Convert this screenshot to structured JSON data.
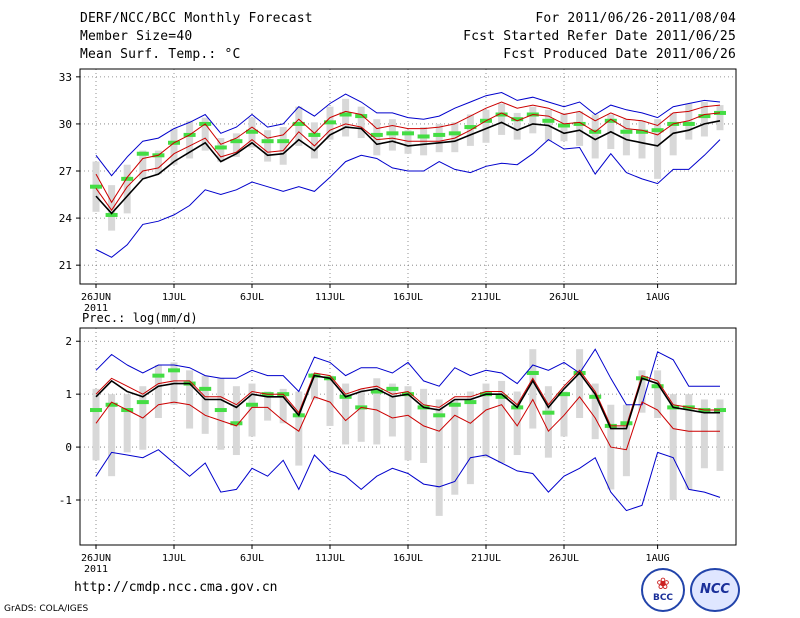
{
  "header": {
    "title": "DERF/NCC/BCC Monthly Forecast",
    "member_size": "Member Size=40",
    "variable": "Mean Surf. Temp.: °C",
    "period": "For 2011/06/26-2011/08/04",
    "refer_date": "Fcst Started Refer Date 2011/06/25",
    "produced_date": "Fcst Produced Date 2011/06/26"
  },
  "footer": {
    "url": "http://cmdp.ncc.cma.gov.cn",
    "credit": "GrADS: COLA/IGES",
    "logo_left_text": "BCC",
    "logo_right_text": "NCC"
  },
  "colors": {
    "envelope": "#0000cc",
    "mean": "#000000",
    "spread": "#cc0000",
    "median": "#44dd44",
    "box": "#d8d8d8",
    "grid": "#777777"
  },
  "chart_data": [
    {
      "type": "line",
      "title": "Mean Surf. Temp.: °C",
      "x_tick_labels": [
        "26JUN",
        "1JUL",
        "6JUL",
        "11JUL",
        "16JUL",
        "21JUL",
        "26JUL",
        "1AUG"
      ],
      "x_tick_days": [
        1,
        6,
        11,
        16,
        21,
        26,
        31,
        37
      ],
      "year_label": "2011",
      "y_ticks": [
        21,
        24,
        27,
        30,
        33
      ],
      "y_tick_labels": [
        "21",
        "24",
        "27",
        "30",
        "33"
      ],
      "ylim": [
        19.8,
        33.5
      ],
      "days": 40,
      "series": [
        {
          "name": "max",
          "values": [
            22.0,
            21.5,
            22.3,
            23.6,
            23.8,
            24.2,
            24.8,
            25.8,
            25.5,
            25.8,
            26.3,
            26.0,
            25.7,
            26.0,
            25.7,
            26.6,
            27.6,
            28.0,
            27.8,
            27.2,
            27.0,
            27.0,
            27.6,
            27.1,
            26.9,
            27.3,
            27.5,
            27.4,
            28.1,
            29.0,
            28.4,
            28.5,
            26.8,
            28.1,
            26.9,
            26.5,
            26.2,
            27.1,
            27.1,
            28.0,
            29.0
          ]
        },
        {
          "name": "min_envelope",
          "values": [
            25.9,
            24.5,
            26.0,
            27.0,
            27.2,
            28.1,
            28.6,
            29.1,
            27.9,
            28.2,
            29.0,
            28.2,
            28.3,
            29.5,
            28.6,
            29.6,
            30.0,
            29.8,
            29.0,
            29.1,
            28.9,
            28.9,
            28.9,
            29.1,
            29.6,
            30.2,
            30.7,
            30.2,
            30.6,
            30.5,
            30.0,
            30.1,
            29.5,
            30.3,
            29.7,
            29.6,
            29.3,
            30.0,
            30.2,
            30.6,
            30.7
          ]
        }
      ],
      "upper": [
        26.8,
        25.0,
        26.6,
        27.8,
        28.0,
        28.8,
        29.3,
        30.0,
        28.7,
        29.1,
        29.8,
        29.1,
        29.3,
        30.3,
        29.4,
        30.4,
        30.8,
        30.6,
        29.7,
        29.9,
        29.7,
        29.7,
        29.8,
        30.0,
        30.5,
        31.0,
        31.4,
        31.0,
        31.2,
        31.0,
        30.6,
        30.8,
        30.2,
        30.7,
        30.3,
        30.2,
        29.9,
        30.7,
        30.8,
        31.1,
        31.2
      ],
      "envelope_top": [
        28.0,
        26.7,
        27.9,
        28.9,
        29.1,
        29.7,
        30.1,
        30.6,
        29.4,
        29.8,
        30.6,
        29.8,
        30.0,
        31.1,
        30.5,
        31.3,
        31.9,
        31.4,
        30.7,
        30.7,
        30.4,
        30.3,
        30.5,
        31.0,
        31.4,
        31.8,
        32.0,
        31.5,
        31.7,
        31.4,
        31.1,
        31.4,
        30.6,
        31.2,
        30.9,
        30.7,
        30.4,
        31.1,
        31.3,
        31.5,
        31.4
      ],
      "mean": [
        25.4,
        24.3,
        25.4,
        26.5,
        26.8,
        27.6,
        28.2,
        28.8,
        27.6,
        28.1,
        28.8,
        28.0,
        28.1,
        29.0,
        28.3,
        29.3,
        29.8,
        29.7,
        28.7,
        28.9,
        28.6,
        28.7,
        28.8,
        28.9,
        29.3,
        29.7,
        30.1,
        29.6,
        30.0,
        29.9,
        29.4,
        29.6,
        29.0,
        29.5,
        29.0,
        28.8,
        28.6,
        29.4,
        29.6,
        30.0,
        30.2
      ],
      "median": [
        26.0,
        24.2,
        26.5,
        28.1,
        28.0,
        28.8,
        29.3,
        30.0,
        28.5,
        28.9,
        29.5,
        28.9,
        28.9,
        30.0,
        29.3,
        30.1,
        30.6,
        30.5,
        29.3,
        29.4,
        29.4,
        29.2,
        29.3,
        29.4,
        29.8,
        30.2,
        30.6,
        30.3,
        30.6,
        30.2,
        29.9,
        30.0,
        29.5,
        30.2,
        29.5,
        29.5,
        29.6,
        30.0,
        30.0,
        30.5,
        30.7
      ],
      "box_low": [
        24.4,
        23.2,
        24.3,
        26.5,
        26.8,
        27.4,
        27.8,
        28.3,
        27.6,
        27.9,
        28.5,
        27.6,
        27.4,
        28.6,
        27.8,
        29.0,
        29.2,
        29.1,
        28.0,
        28.3,
        28.1,
        28.0,
        28.2,
        28.2,
        28.6,
        28.8,
        29.3,
        29.0,
        29.4,
        28.9,
        28.9,
        28.6,
        27.8,
        28.4,
        28.0,
        27.8,
        26.5,
        28.0,
        29.0,
        29.2,
        29.6
      ],
      "box_high": [
        27.6,
        26.1,
        27.4,
        28.3,
        28.3,
        29.7,
        30.2,
        30.4,
        29.1,
        29.4,
        30.4,
        29.6,
        29.8,
        31.1,
        30.1,
        31.1,
        31.6,
        31.1,
        30.3,
        30.3,
        29.6,
        29.8,
        30.0,
        30.1,
        30.6,
        30.9,
        31.3,
        30.7,
        31.1,
        30.9,
        30.7,
        30.8,
        30.6,
        30.6,
        30.3,
        30.2,
        30.3,
        30.7,
        31.3,
        31.4,
        31.2
      ]
    },
    {
      "type": "line",
      "title": "Prec.: log(mm/d)",
      "x_tick_labels": [
        "26JUN",
        "1JUL",
        "6JUL",
        "11JUL",
        "16JUL",
        "21JUL",
        "26JUL",
        "1AUG"
      ],
      "x_tick_days": [
        1,
        6,
        11,
        16,
        21,
        26,
        31,
        37
      ],
      "year_label": "2011",
      "y_ticks": [
        -1,
        0,
        1,
        2
      ],
      "y_tick_labels": [
        "-1",
        "0",
        "1",
        "2"
      ],
      "ylim": [
        -1.85,
        2.25
      ],
      "days": 40,
      "envelope_top": [
        1.45,
        1.75,
        1.55,
        1.4,
        1.55,
        1.55,
        1.5,
        1.35,
        1.3,
        1.3,
        1.45,
        1.35,
        1.35,
        1.05,
        1.7,
        1.6,
        1.35,
        1.5,
        1.5,
        1.4,
        1.6,
        1.25,
        1.15,
        1.5,
        1.35,
        1.45,
        1.4,
        1.2,
        1.55,
        1.45,
        1.6,
        1.4,
        1.85,
        1.3,
        0.8,
        0.8,
        1.8,
        1.65,
        1.15,
        1.15,
        1.15
      ],
      "envelope_bottom": [
        -0.55,
        -0.1,
        -0.15,
        -0.2,
        -0.05,
        -0.3,
        -0.55,
        -0.3,
        -0.85,
        -0.8,
        -0.4,
        -0.55,
        -0.25,
        -0.8,
        -0.15,
        -0.45,
        -0.55,
        -0.8,
        -0.55,
        -0.4,
        -0.5,
        -0.7,
        -0.75,
        -0.65,
        -0.2,
        -0.15,
        -0.3,
        -0.45,
        -0.5,
        -0.85,
        -0.55,
        -0.4,
        -0.2,
        -0.85,
        -1.2,
        -1.1,
        -0.1,
        -0.2,
        -0.8,
        -0.85,
        -0.95
      ],
      "upper": [
        1.0,
        1.3,
        1.15,
        1.0,
        1.2,
        1.25,
        1.25,
        0.95,
        0.95,
        0.8,
        1.05,
        1.0,
        1.0,
        0.65,
        1.4,
        1.35,
        1.0,
        1.1,
        1.15,
        1.0,
        1.05,
        0.8,
        0.75,
        0.95,
        0.95,
        1.05,
        1.05,
        0.8,
        1.3,
        0.8,
        1.15,
        1.45,
        1.05,
        0.4,
        0.4,
        1.35,
        1.25,
        0.8,
        0.75,
        0.7,
        0.7
      ],
      "mean": [
        0.95,
        1.25,
        1.05,
        0.95,
        1.15,
        1.2,
        1.2,
        0.9,
        0.9,
        0.75,
        1.0,
        0.95,
        0.95,
        0.6,
        1.35,
        1.3,
        0.95,
        1.05,
        1.1,
        0.95,
        1.0,
        0.75,
        0.7,
        0.9,
        0.9,
        1.0,
        1.0,
        0.75,
        1.25,
        0.75,
        1.1,
        1.4,
        1.0,
        0.35,
        0.35,
        1.3,
        1.2,
        0.75,
        0.7,
        0.65,
        0.65
      ],
      "lower": [
        0.45,
        0.85,
        0.7,
        0.55,
        0.8,
        0.85,
        0.8,
        0.6,
        0.5,
        0.4,
        0.75,
        0.75,
        0.5,
        0.3,
        0.95,
        0.85,
        0.5,
        0.75,
        0.7,
        0.55,
        0.6,
        0.4,
        0.3,
        0.6,
        0.45,
        0.7,
        0.8,
        0.4,
        0.9,
        0.3,
        0.6,
        0.95,
        0.55,
        0.0,
        -0.05,
        0.85,
        0.7,
        0.35,
        0.3,
        0.3,
        0.3
      ],
      "median": [
        0.7,
        0.8,
        0.7,
        0.85,
        1.35,
        1.45,
        1.2,
        1.1,
        0.7,
        0.45,
        0.8,
        1.0,
        1.0,
        0.6,
        1.35,
        1.3,
        0.95,
        0.75,
        1.05,
        1.1,
        1.0,
        0.75,
        0.6,
        0.8,
        0.85,
        1.0,
        0.95,
        0.75,
        1.4,
        0.65,
        1.0,
        1.4,
        0.95,
        0.4,
        0.45,
        1.3,
        1.15,
        0.75,
        0.75,
        0.7,
        0.7
      ],
      "box_low": [
        -0.25,
        -0.55,
        -0.1,
        -0.05,
        0.55,
        0.8,
        0.35,
        0.25,
        -0.05,
        -0.15,
        0.2,
        0.5,
        0.45,
        -0.35,
        0.9,
        0.4,
        0.05,
        0.1,
        0.05,
        0.2,
        -0.25,
        -0.3,
        -1.3,
        -0.9,
        -0.7,
        -0.2,
        -0.3,
        -0.15,
        0.35,
        -0.2,
        0.2,
        0.55,
        0.15,
        -0.8,
        -0.55,
        0.65,
        0.55,
        -1.0,
        -0.8,
        -0.4,
        -0.45
      ],
      "box_high": [
        1.1,
        1.0,
        1.0,
        1.15,
        1.55,
        1.6,
        1.45,
        1.35,
        1.3,
        1.15,
        1.2,
        1.05,
        1.1,
        1.05,
        1.4,
        1.35,
        1.2,
        1.1,
        1.3,
        1.2,
        1.15,
        1.1,
        0.9,
        0.9,
        1.05,
        1.2,
        1.25,
        1.05,
        1.85,
        1.15,
        1.05,
        1.85,
        1.2,
        0.8,
        0.8,
        1.45,
        1.45,
        1.0,
        1.0,
        0.9,
        0.9
      ]
    }
  ]
}
